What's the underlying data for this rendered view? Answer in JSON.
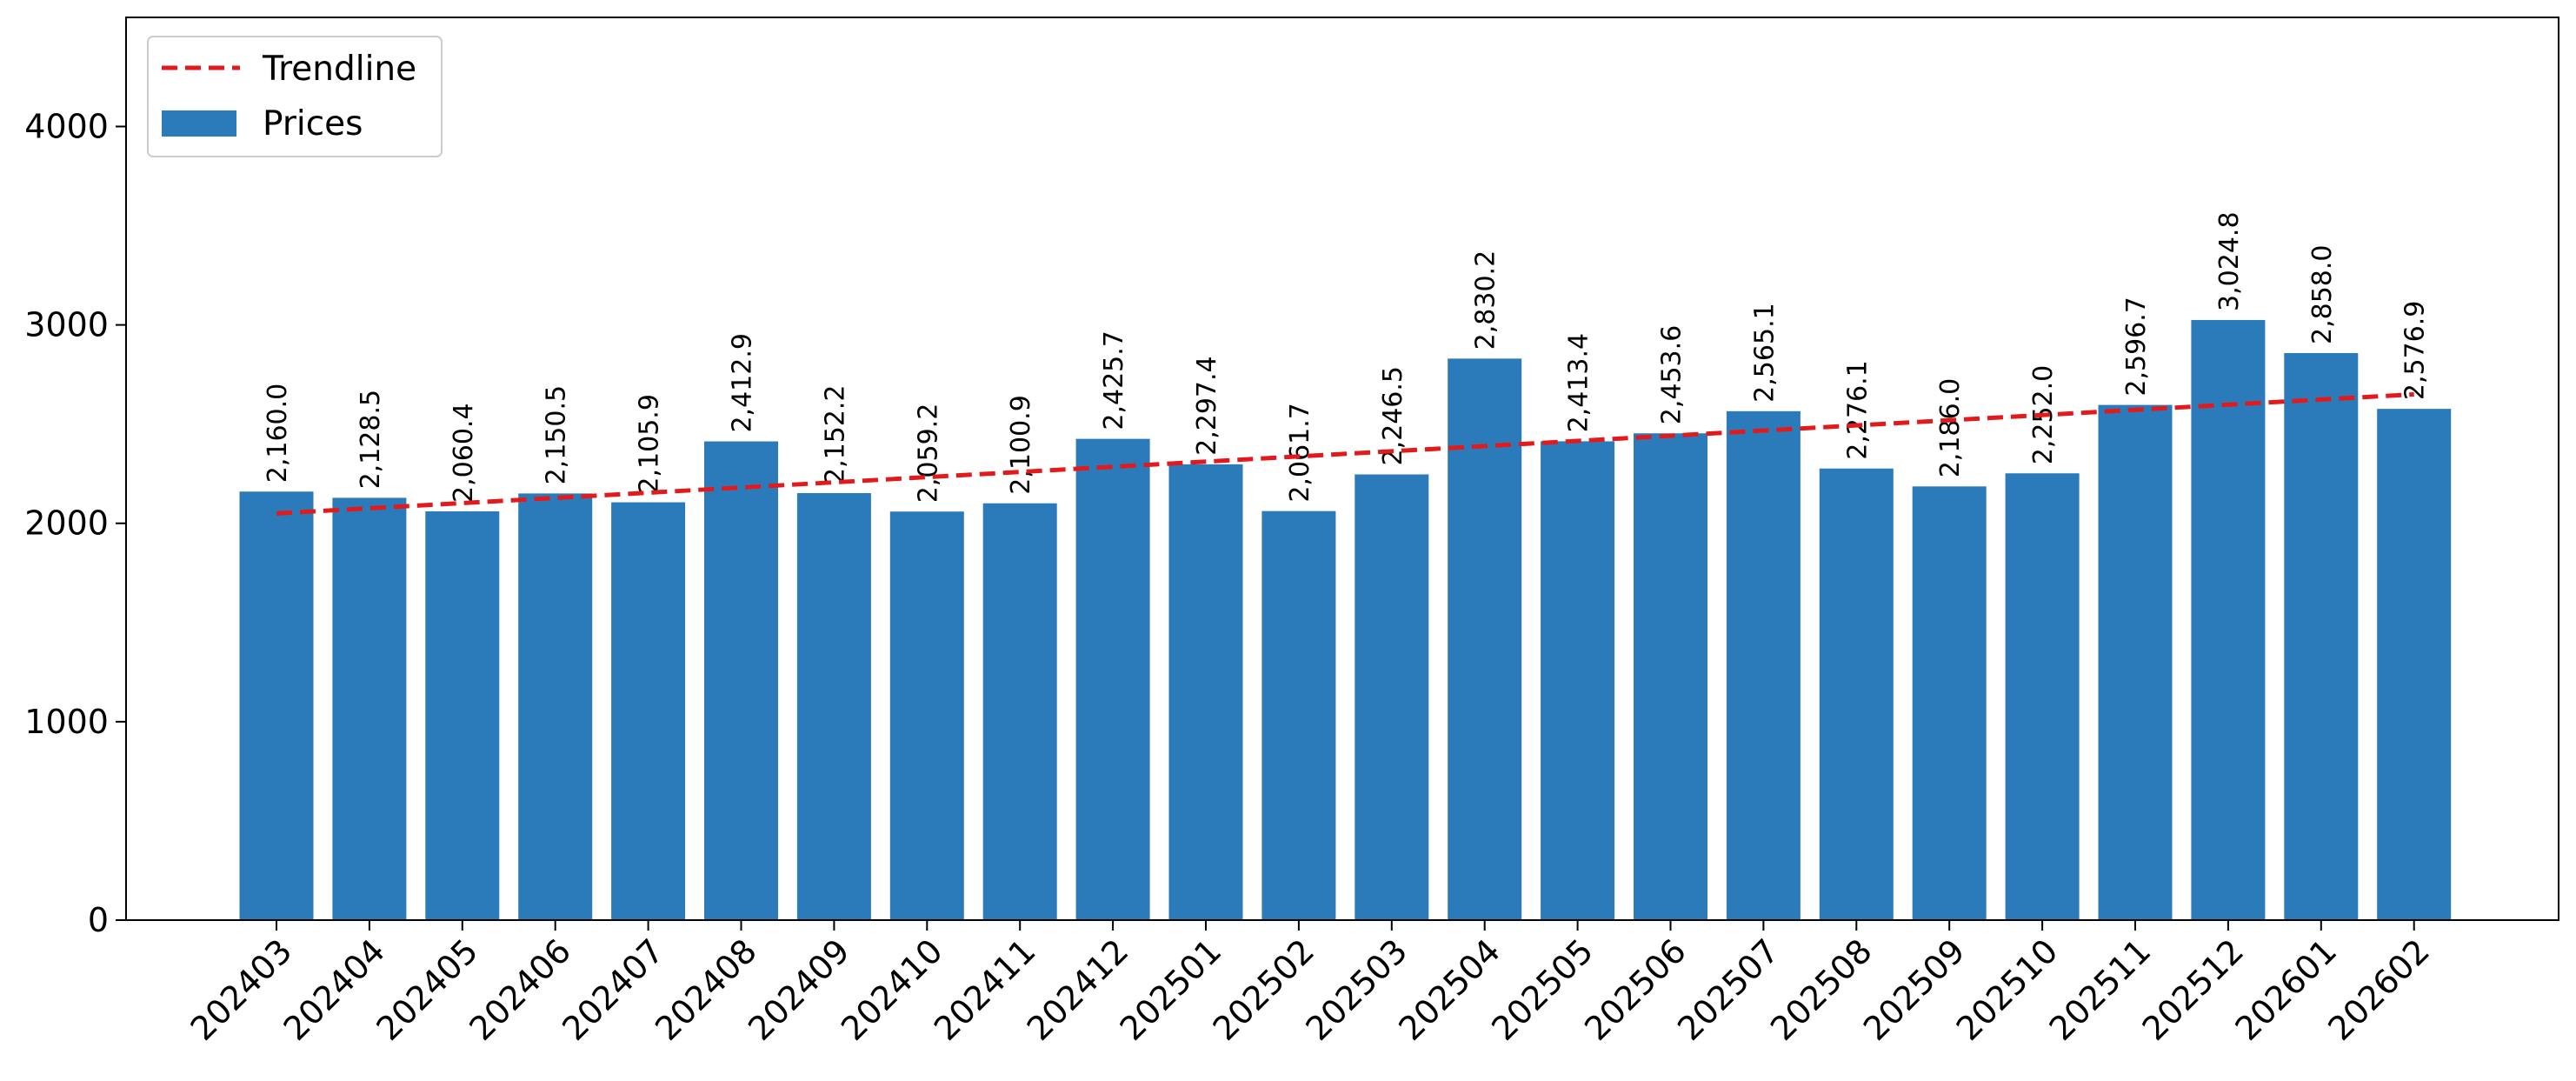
{
  "chart_data": {
    "type": "bar",
    "title": "",
    "xlabel": "",
    "ylabel": "",
    "categories": [
      "202403",
      "202404",
      "202405",
      "202406",
      "202407",
      "202408",
      "202409",
      "202410",
      "202411",
      "202412",
      "202501",
      "202502",
      "202503",
      "202504",
      "202505",
      "202506",
      "202507",
      "202508",
      "202509",
      "202510",
      "202511",
      "202512",
      "202601",
      "202602"
    ],
    "series": [
      {
        "name": "Prices",
        "color": "#2b7bba",
        "values": [
          2160.0,
          2128.5,
          2060.4,
          2150.5,
          2105.9,
          2412.9,
          2152.2,
          2059.2,
          2100.9,
          2425.7,
          2297.4,
          2061.7,
          2246.5,
          2830.2,
          2413.4,
          2453.6,
          2565.1,
          2276.1,
          2186.0,
          2252.0,
          2596.7,
          3024.8,
          2858.0,
          2576.9
        ],
        "value_labels": [
          "2,160.0",
          "2,128.5",
          "2,060.4",
          "2,150.5",
          "2,105.9",
          "2,412.9",
          "2,152.2",
          "2,059.2",
          "2,100.9",
          "2,425.7",
          "2,297.4",
          "2,061.7",
          "2,246.5",
          "2,830.2",
          "2,413.4",
          "2,453.6",
          "2,565.1",
          "2,276.1",
          "2,186.0",
          "2,252.0",
          "2,596.7",
          "3,024.8",
          "2,858.0",
          "2,576.9"
        ]
      }
    ],
    "trendline": {
      "name": "Trendline",
      "color": "#e31a1c",
      "style": "dashed",
      "start_value": 2050,
      "end_value": 2650
    },
    "ylim": [
      0,
      4550
    ],
    "yticks": [
      0,
      1000,
      2000,
      3000,
      4000
    ],
    "grid": false,
    "legend": {
      "position": "top-left",
      "entries": [
        {
          "label": "Trendline",
          "kind": "line",
          "color": "#e31a1c"
        },
        {
          "label": "Prices",
          "kind": "patch",
          "color": "#2b7bba"
        }
      ]
    }
  }
}
